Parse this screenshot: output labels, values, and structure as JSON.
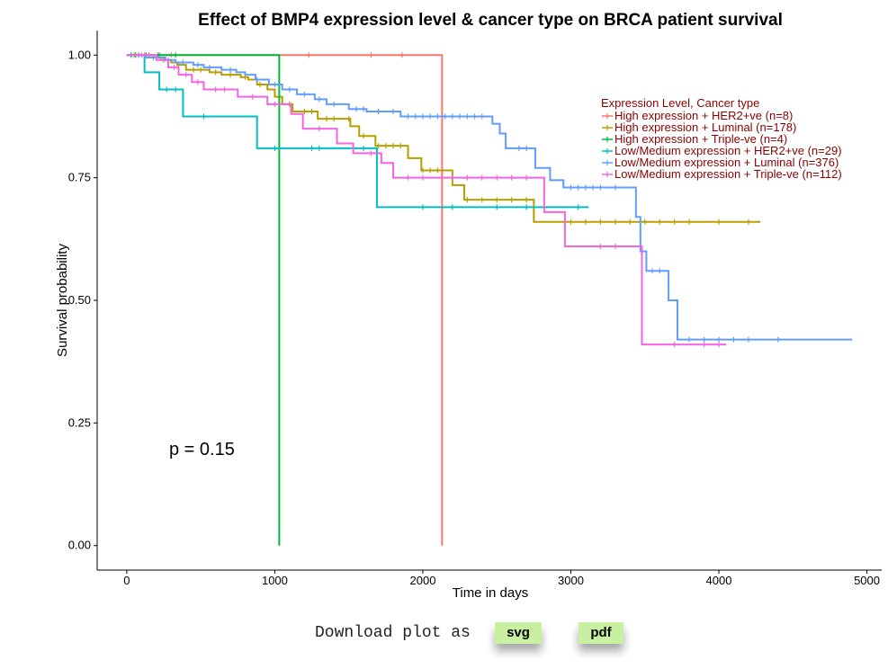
{
  "chart_data": {
    "type": "line",
    "title": "Effect of BMP4 expression level & cancer type on BRCA patient survival",
    "xlabel": "Time in days",
    "ylabel": "Survival probability",
    "xlim": [
      -200,
      5100
    ],
    "ylim": [
      -0.05,
      1.05
    ],
    "xticks": [
      0,
      1000,
      2000,
      3000,
      4000,
      5000
    ],
    "xtick_labels": [
      "0",
      "1000",
      "2000",
      "3000",
      "4000",
      "5000"
    ],
    "yticks": [
      0,
      0.25,
      0.5,
      0.75,
      1
    ],
    "ytick_labels": [
      "0.00",
      "0.25",
      "0.50",
      "0.75",
      "1.00"
    ],
    "grid": false,
    "legend_title": "Expression Level, Cancer type",
    "legend_position": "top-right",
    "annotation": "p = 0.15",
    "series": [
      {
        "name": "High expression + HER2+ve (n=8)",
        "color": "#f8766d",
        "steps": [
          [
            0,
            1.0
          ],
          [
            2130,
            0.0
          ]
        ],
        "end": 2130,
        "censors": [
          30,
          120,
          210,
          300,
          1230,
          1650,
          1860
        ]
      },
      {
        "name": "High expression + Luminal (n=178)",
        "color": "#b79f00",
        "steps": [
          [
            0,
            1.0
          ],
          [
            180,
            0.995
          ],
          [
            230,
            0.99
          ],
          [
            300,
            0.985
          ],
          [
            340,
            0.98
          ],
          [
            400,
            0.97
          ],
          [
            560,
            0.965
          ],
          [
            640,
            0.96
          ],
          [
            770,
            0.955
          ],
          [
            820,
            0.95
          ],
          [
            880,
            0.94
          ],
          [
            950,
            0.93
          ],
          [
            1000,
            0.915
          ],
          [
            1050,
            0.9
          ],
          [
            1120,
            0.885
          ],
          [
            1290,
            0.87
          ],
          [
            1510,
            0.855
          ],
          [
            1570,
            0.835
          ],
          [
            1680,
            0.815
          ],
          [
            1900,
            0.79
          ],
          [
            1990,
            0.765
          ],
          [
            2200,
            0.735
          ],
          [
            2280,
            0.705
          ],
          [
            2750,
            0.66
          ]
        ],
        "end": 4280,
        "censors": [
          50,
          150,
          250,
          350,
          450,
          500,
          600,
          700,
          800,
          900,
          1100,
          1200,
          1250,
          1350,
          1400,
          1500,
          1600,
          1700,
          1750,
          1800,
          1850,
          2000,
          2050,
          2100,
          2300,
          2400,
          2500,
          2600,
          2700,
          3000,
          3100,
          3200,
          3300,
          3400,
          3500,
          3600,
          3700,
          3800,
          4000,
          4200
        ]
      },
      {
        "name": "High expression + Triple-ve (n=4)",
        "color": "#00ba38",
        "steps": [
          [
            0,
            1.0
          ],
          [
            1030,
            0.0
          ]
        ],
        "end": 1030,
        "censors": [
          60,
          130,
          220,
          330
        ]
      },
      {
        "name": "Low/Medium expression + HER2+ve (n=29)",
        "color": "#00bfc4",
        "steps": [
          [
            0,
            1.0
          ],
          [
            120,
            0.965
          ],
          [
            220,
            0.93
          ],
          [
            380,
            0.875
          ],
          [
            880,
            0.81
          ],
          [
            1690,
            0.69
          ]
        ],
        "end": 3120,
        "censors": [
          30,
          80,
          270,
          330,
          520,
          1000,
          1250,
          1300,
          1600,
          2000,
          2200,
          2500,
          2700,
          3050
        ]
      },
      {
        "name": "Low/Medium expression + Luminal (n=376)",
        "color": "#619cff",
        "steps": [
          [
            0,
            1.0
          ],
          [
            120,
            0.995
          ],
          [
            260,
            0.99
          ],
          [
            330,
            0.985
          ],
          [
            450,
            0.98
          ],
          [
            520,
            0.975
          ],
          [
            640,
            0.97
          ],
          [
            740,
            0.965
          ],
          [
            800,
            0.96
          ],
          [
            870,
            0.95
          ],
          [
            960,
            0.94
          ],
          [
            1050,
            0.93
          ],
          [
            1150,
            0.92
          ],
          [
            1270,
            0.91
          ],
          [
            1350,
            0.9
          ],
          [
            1500,
            0.89
          ],
          [
            1620,
            0.885
          ],
          [
            1850,
            0.875
          ],
          [
            2470,
            0.86
          ],
          [
            2520,
            0.84
          ],
          [
            2560,
            0.81
          ],
          [
            2760,
            0.77
          ],
          [
            2860,
            0.745
          ],
          [
            2950,
            0.73
          ],
          [
            3440,
            0.67
          ],
          [
            3470,
            0.6
          ],
          [
            3510,
            0.56
          ],
          [
            3660,
            0.5
          ],
          [
            3720,
            0.42
          ]
        ],
        "end": 4900,
        "censors": [
          80,
          180,
          280,
          380,
          480,
          560,
          700,
          880,
          1000,
          1100,
          1200,
          1300,
          1400,
          1550,
          1600,
          1700,
          1800,
          1900,
          1950,
          2000,
          2050,
          2100,
          2150,
          2200,
          2250,
          2300,
          2350,
          2400,
          2650,
          2700,
          3000,
          3050,
          3100,
          3150,
          3200,
          3300,
          3550,
          3600,
          3800,
          3900,
          4000,
          4100,
          4200,
          4400
        ]
      },
      {
        "name": "Low/Medium expression + Triple-ve (n=112)",
        "color": "#f564e3",
        "steps": [
          [
            0,
            1.0
          ],
          [
            200,
            0.99
          ],
          [
            280,
            0.975
          ],
          [
            350,
            0.96
          ],
          [
            440,
            0.945
          ],
          [
            520,
            0.93
          ],
          [
            750,
            0.915
          ],
          [
            950,
            0.9
          ],
          [
            1110,
            0.88
          ],
          [
            1190,
            0.85
          ],
          [
            1420,
            0.82
          ],
          [
            1530,
            0.8
          ],
          [
            1720,
            0.78
          ],
          [
            1800,
            0.75
          ],
          [
            2820,
            0.68
          ],
          [
            2960,
            0.61
          ],
          [
            3480,
            0.41
          ]
        ],
        "end": 4050,
        "censors": [
          100,
          150,
          320,
          400,
          480,
          600,
          660,
          850,
          1000,
          1300,
          1650,
          1900,
          2000,
          2200,
          2300,
          2400,
          2500,
          2600,
          2700,
          3200,
          3300,
          3700,
          3900,
          4000
        ]
      }
    ]
  },
  "download": {
    "label": "Download plot as",
    "svg_label": "svg",
    "pdf_label": "pdf"
  }
}
